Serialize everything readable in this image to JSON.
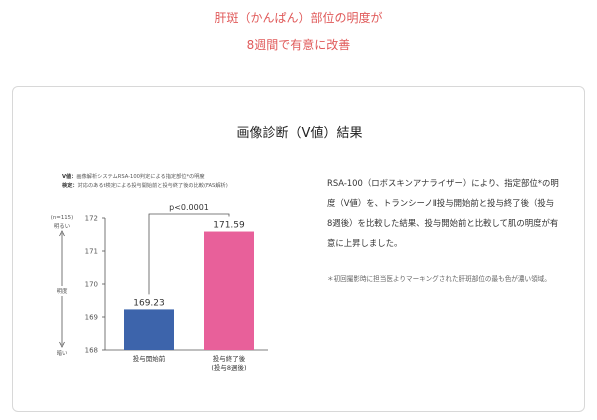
{
  "header": {
    "line1": "肝斑（かんぱん）部位の明度が",
    "line2": "8週間で有意に改善"
  },
  "card": {
    "title": "画像診断（V値）結果",
    "caption": {
      "v_label": "V値：",
      "v_text": "画像解析システムRSA-100判定による指定部位*の明度",
      "test_label": "検定：",
      "test_text": "対応のあるt検定による投与開始前と投与終了後の比較(FAS解析)"
    },
    "description": "RSA-100（ロボスキンアナライザー）により、指定部位*の明度（V値）を、トランシーノⅡ投与開始前と投与終了後（投与8週後）を比較した結果、投与開始前と比較して肌の明度が有意に上昇しました。",
    "note": "＊初回撮影時に担当医よりマーキングされた肝斑部位の最も色が濃い領域。"
  },
  "chart_data": {
    "type": "bar",
    "categories": [
      "投与開始前",
      "投与終了後"
    ],
    "category_sublabels": [
      "",
      "(投与8週後)"
    ],
    "values": [
      169.23,
      171.59
    ],
    "value_labels": [
      "169.23",
      "171.59"
    ],
    "colors": [
      "#3d64ab",
      "#e8609a"
    ],
    "ylim": [
      168,
      172
    ],
    "yticks": [
      168,
      169,
      170,
      171,
      172
    ],
    "ylabel": "明度",
    "y_top_label": "明るい",
    "y_bottom_label": "暗い",
    "n_label": "(n=115)",
    "significance": "p<0.0001"
  }
}
